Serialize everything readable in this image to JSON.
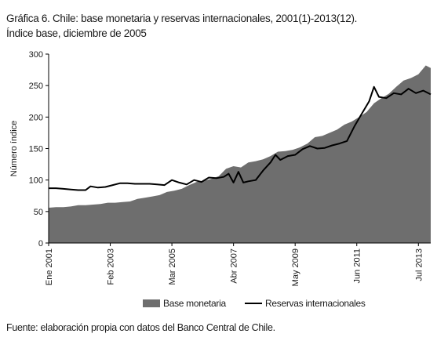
{
  "header": {
    "title": "Gráfica 6. Chile: base monetaria y reservas internacionales, 2001(1)-2013(12).",
    "subtitle": "Índice base, diciembre de 2005"
  },
  "footer": {
    "source": "Fuente: elaboración propia con datos del Banco Central de Chile."
  },
  "chart_data": {
    "type": "area",
    "title": "Gráfica 6. Chile: base monetaria y reservas internacionales, 2001(1)-2013(12).",
    "subtitle": "Índice base, diciembre de 2005",
    "ylabel": "Número índice",
    "xlabel": "",
    "ylim": [
      0,
      300
    ],
    "yticks": [
      0,
      50,
      100,
      150,
      200,
      250,
      300
    ],
    "xlim": [
      "2001-01",
      "2013-12"
    ],
    "xticks": [
      {
        "date": "2001-01",
        "label": "Ene 2001"
      },
      {
        "date": "2003-02",
        "label": "Feb 2003"
      },
      {
        "date": "2005-03",
        "label": "Mar 2005"
      },
      {
        "date": "2007-04",
        "label": "Abr 2007"
      },
      {
        "date": "2009-05",
        "label": "May 2009"
      },
      {
        "date": "2011-06",
        "label": "Jun 2011"
      },
      {
        "date": "2013-07",
        "label": "Jul 2013"
      }
    ],
    "grid": false,
    "legend_position": "bottom",
    "series": [
      {
        "name": "Base monetaria",
        "kind": "area",
        "color": "#6e6e6e",
        "points": [
          [
            "2001-01",
            56
          ],
          [
            "2001-04",
            57
          ],
          [
            "2001-07",
            57
          ],
          [
            "2001-10",
            58
          ],
          [
            "2002-01",
            60
          ],
          [
            "2002-04",
            60
          ],
          [
            "2002-07",
            61
          ],
          [
            "2002-10",
            62
          ],
          [
            "2003-01",
            64
          ],
          [
            "2003-04",
            64
          ],
          [
            "2003-07",
            65
          ],
          [
            "2003-10",
            66
          ],
          [
            "2004-01",
            70
          ],
          [
            "2004-04",
            72
          ],
          [
            "2004-07",
            74
          ],
          [
            "2004-10",
            76
          ],
          [
            "2005-01",
            81
          ],
          [
            "2005-04",
            83
          ],
          [
            "2005-07",
            86
          ],
          [
            "2005-10",
            92
          ],
          [
            "2006-01",
            97
          ],
          [
            "2006-04",
            99
          ],
          [
            "2006-07",
            102
          ],
          [
            "2006-10",
            106
          ],
          [
            "2007-01",
            118
          ],
          [
            "2007-04",
            122
          ],
          [
            "2007-07",
            120
          ],
          [
            "2007-10",
            128
          ],
          [
            "2008-01",
            130
          ],
          [
            "2008-04",
            133
          ],
          [
            "2008-07",
            138
          ],
          [
            "2008-10",
            145
          ],
          [
            "2009-01",
            146
          ],
          [
            "2009-04",
            148
          ],
          [
            "2009-07",
            152
          ],
          [
            "2009-10",
            158
          ],
          [
            "2010-01",
            168
          ],
          [
            "2010-04",
            170
          ],
          [
            "2010-07",
            175
          ],
          [
            "2010-10",
            180
          ],
          [
            "2011-01",
            188
          ],
          [
            "2011-04",
            193
          ],
          [
            "2011-07",
            200
          ],
          [
            "2011-10",
            208
          ],
          [
            "2012-01",
            222
          ],
          [
            "2012-04",
            230
          ],
          [
            "2012-07",
            237
          ],
          [
            "2012-10",
            248
          ],
          [
            "2013-01",
            258
          ],
          [
            "2013-04",
            262
          ],
          [
            "2013-07",
            268
          ],
          [
            "2013-10",
            282
          ],
          [
            "2013-12",
            278
          ]
        ]
      },
      {
        "name": "Reservas internacionales",
        "kind": "line",
        "color": "#000000",
        "points": [
          [
            "2001-01",
            87
          ],
          [
            "2001-04",
            87
          ],
          [
            "2001-07",
            86
          ],
          [
            "2001-10",
            85
          ],
          [
            "2002-01",
            84
          ],
          [
            "2002-04",
            84
          ],
          [
            "2002-06",
            90
          ],
          [
            "2002-09",
            88
          ],
          [
            "2002-12",
            89
          ],
          [
            "2003-03",
            92
          ],
          [
            "2003-06",
            95
          ],
          [
            "2003-09",
            95
          ],
          [
            "2003-12",
            94
          ],
          [
            "2004-03",
            94
          ],
          [
            "2004-06",
            94
          ],
          [
            "2004-09",
            93
          ],
          [
            "2004-12",
            92
          ],
          [
            "2005-03",
            100
          ],
          [
            "2005-06",
            96
          ],
          [
            "2005-09",
            93
          ],
          [
            "2005-12",
            100
          ],
          [
            "2006-03",
            97
          ],
          [
            "2006-06",
            104
          ],
          [
            "2006-09",
            103
          ],
          [
            "2006-12",
            105
          ],
          [
            "2007-02",
            110
          ],
          [
            "2007-04",
            96
          ],
          [
            "2007-06",
            113
          ],
          [
            "2007-08",
            96
          ],
          [
            "2007-10",
            98
          ],
          [
            "2008-01",
            100
          ],
          [
            "2008-04",
            115
          ],
          [
            "2008-07",
            128
          ],
          [
            "2008-09",
            140
          ],
          [
            "2008-11",
            132
          ],
          [
            "2009-02",
            138
          ],
          [
            "2009-05",
            140
          ],
          [
            "2009-08",
            149
          ],
          [
            "2009-11",
            154
          ],
          [
            "2010-02",
            150
          ],
          [
            "2010-05",
            151
          ],
          [
            "2010-08",
            155
          ],
          [
            "2010-11",
            158
          ],
          [
            "2011-02",
            162
          ],
          [
            "2011-05",
            185
          ],
          [
            "2011-08",
            205
          ],
          [
            "2011-11",
            225
          ],
          [
            "2012-01",
            248
          ],
          [
            "2012-03",
            232
          ],
          [
            "2012-06",
            230
          ],
          [
            "2012-09",
            238
          ],
          [
            "2012-12",
            236
          ],
          [
            "2013-03",
            245
          ],
          [
            "2013-06",
            238
          ],
          [
            "2013-09",
            242
          ],
          [
            "2013-12",
            236
          ]
        ]
      }
    ]
  }
}
